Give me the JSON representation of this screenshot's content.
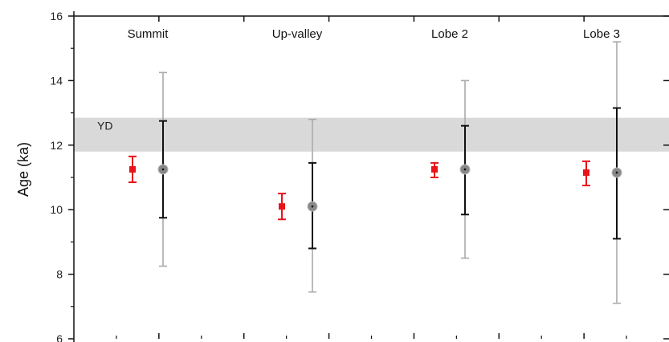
{
  "chart_data": {
    "type": "scatter",
    "title": "",
    "xlabel": "",
    "ylabel": "Age (ka)",
    "ylim": [
      6,
      16
    ],
    "y_ticks": [
      6,
      8,
      10,
      12,
      14,
      16
    ],
    "x_minor_ticks": 7,
    "grid": false,
    "groups": [
      "Summit",
      "Up-valley",
      "Lobe 2",
      "Lobe 3"
    ],
    "band": {
      "label": "YD",
      "y_min": 11.8,
      "y_max": 12.85,
      "color": "#d9d9d9"
    },
    "series": [
      {
        "marker": "square",
        "color": "#e8141a",
        "points": [
          {
            "group": "Summit",
            "y": 11.25,
            "low": 10.85,
            "high": 11.65
          },
          {
            "group": "Up-valley",
            "y": 10.1,
            "low": 9.7,
            "high": 10.5
          },
          {
            "group": "Lobe 2",
            "y": 11.25,
            "low": 11.0,
            "high": 11.45
          },
          {
            "group": "Lobe 3",
            "y": 11.15,
            "low": 10.75,
            "high": 11.5
          }
        ]
      },
      {
        "marker": "circle",
        "color": "#888888",
        "inner_error_color": "#111111",
        "outer_error_color": "#aaaaaa",
        "points": [
          {
            "group": "Summit",
            "y": 11.25,
            "inner_low": 9.75,
            "inner_high": 12.75,
            "outer_low": 8.25,
            "outer_high": 14.25
          },
          {
            "group": "Up-valley",
            "y": 10.1,
            "inner_low": 8.8,
            "inner_high": 11.45,
            "outer_low": 7.45,
            "outer_high": 12.8
          },
          {
            "group": "Lobe 2",
            "y": 11.25,
            "inner_low": 9.85,
            "inner_high": 12.6,
            "outer_low": 8.5,
            "outer_high": 14.0
          },
          {
            "group": "Lobe 3",
            "y": 11.15,
            "inner_low": 9.1,
            "inner_high": 13.15,
            "outer_low": 7.1,
            "outer_high": 15.2
          }
        ]
      }
    ]
  }
}
